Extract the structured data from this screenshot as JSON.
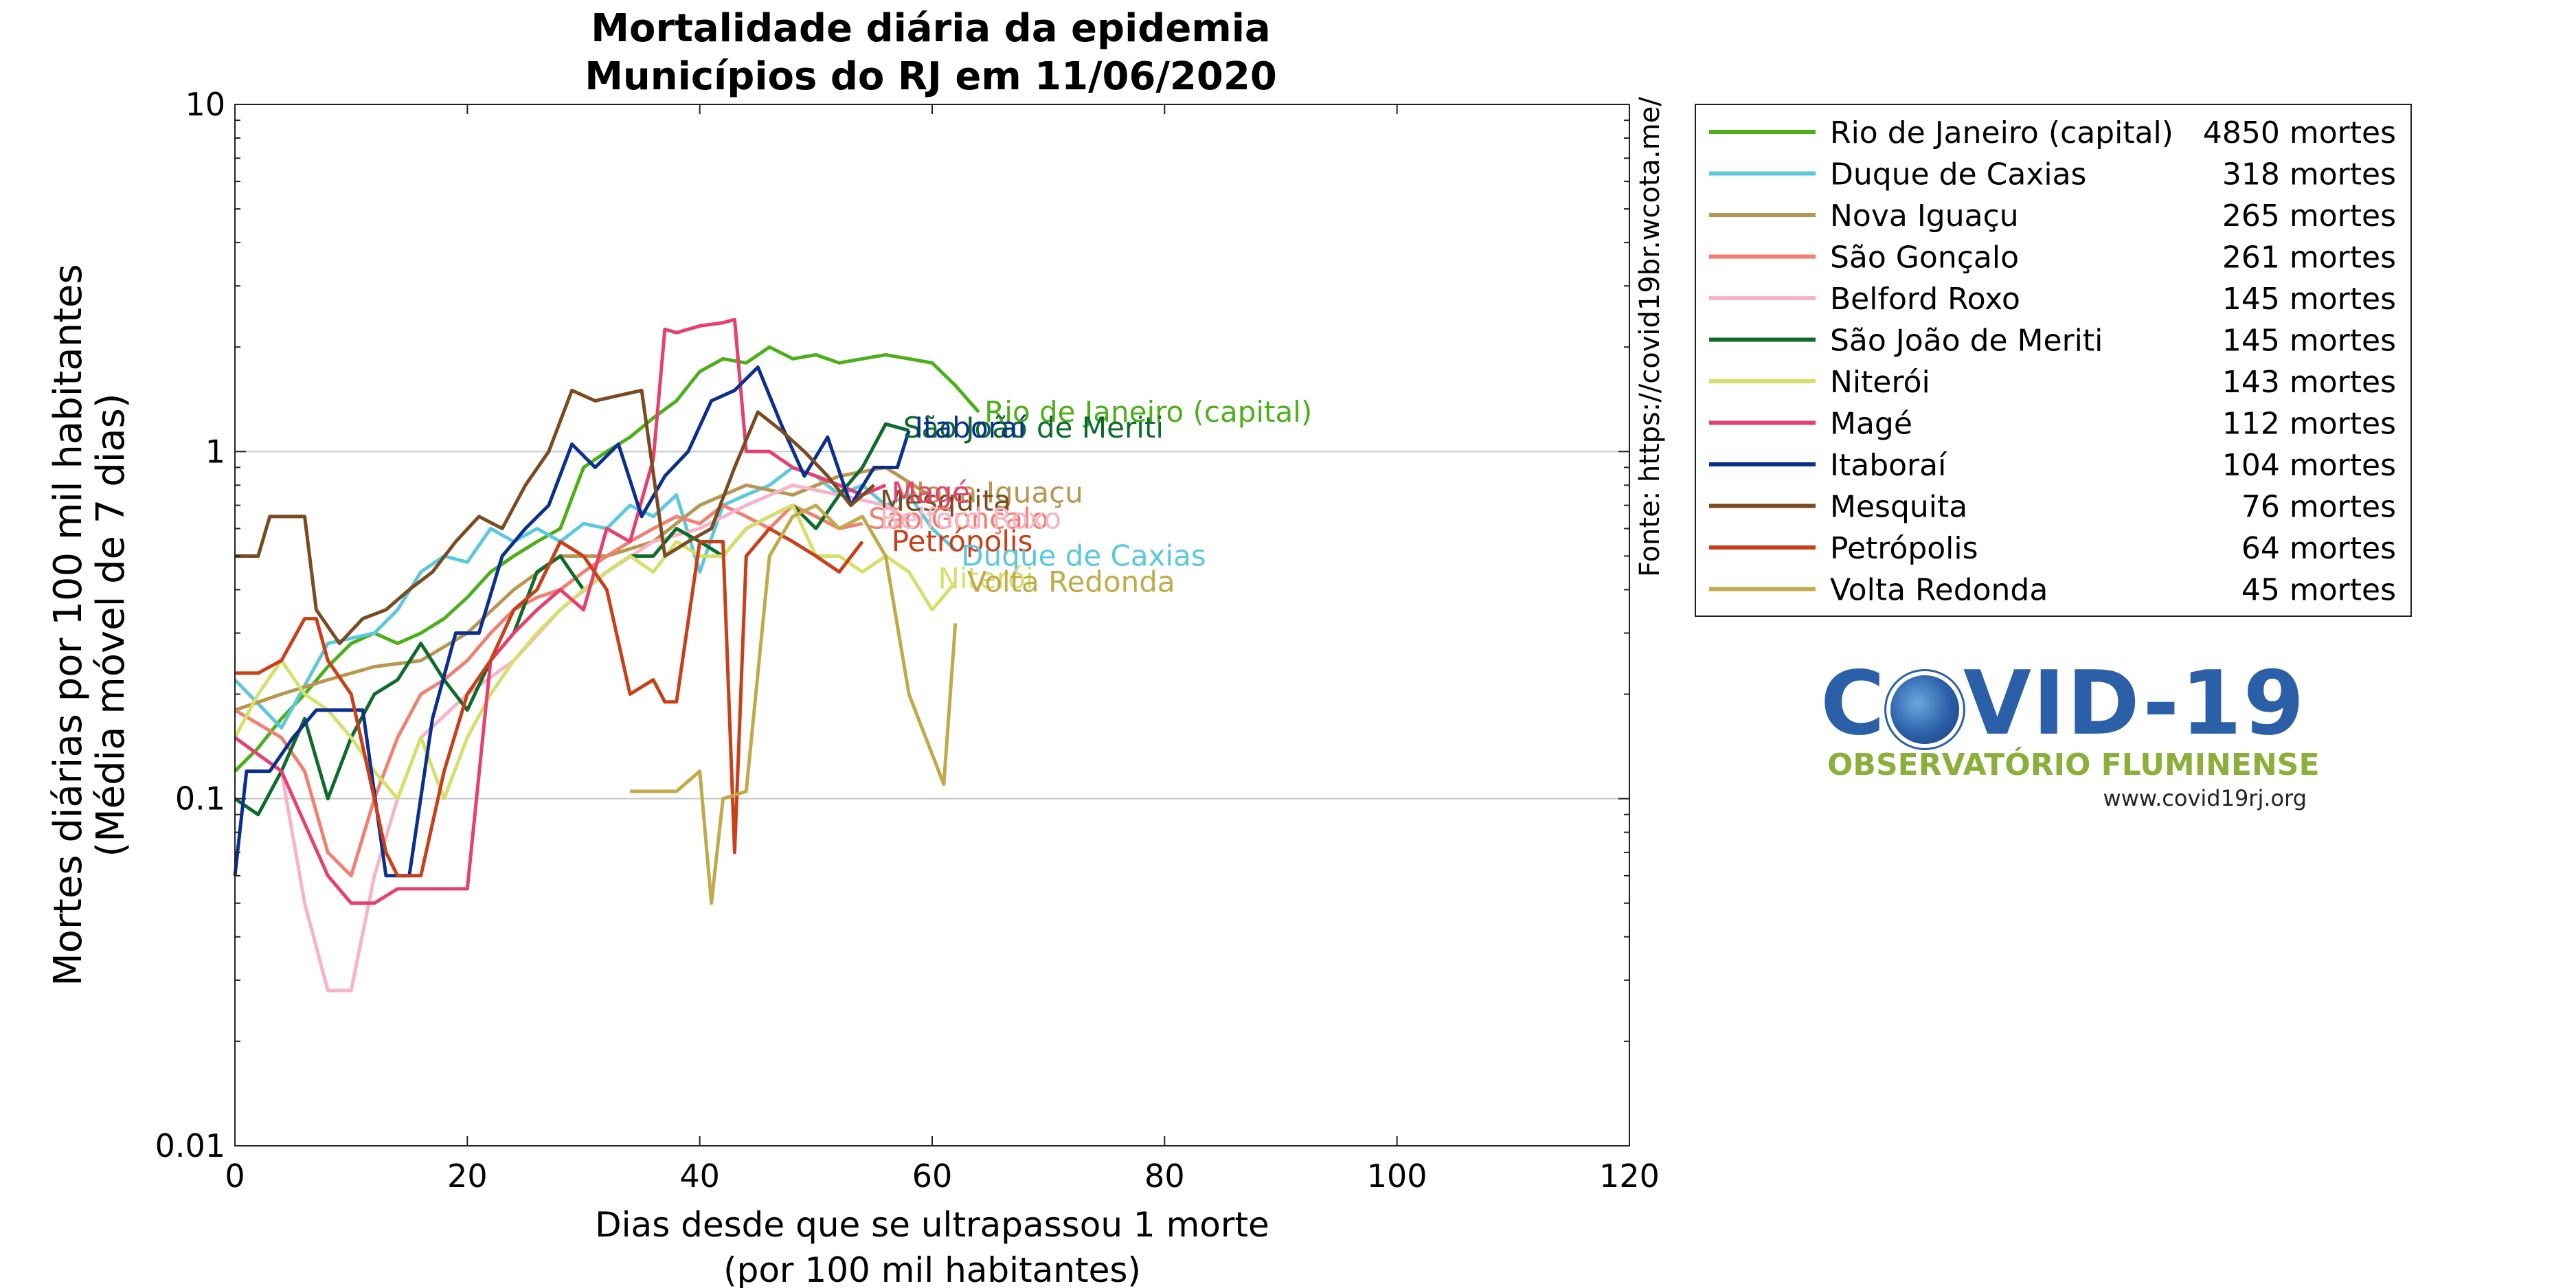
{
  "chart_data": {
    "type": "line",
    "title": "Mortalidade diária da epidemia",
    "subtitle": "Municípios do RJ em 11/06/2020",
    "xlabel": "Dias desde que se ultrapassou 1 morte",
    "xlabel2": "(por 100 mil habitantes)",
    "ylabel": "Mortes diárias por 100 mil habitantes",
    "ylabel2": "(Média móvel de 7 dias)",
    "xlim": [
      0,
      120
    ],
    "ylim": [
      0.01,
      10
    ],
    "yscale": "log",
    "xticks": [
      0,
      20,
      40,
      60,
      80,
      100,
      120
    ],
    "yticks": [
      0.01,
      0.1,
      1,
      10
    ],
    "ytick_labels": [
      "0.01",
      "0.1",
      "1",
      "10"
    ],
    "grid": "horizontal at decades",
    "legend_placement": "outside-right",
    "source_note": "Fonte: https://covid19br.wcota.me/",
    "series": [
      {
        "name": "Rio de Janeiro (capital)",
        "deaths": "4850 mortes",
        "color": "#4caf1a",
        "x": [
          0,
          2,
          4,
          6,
          8,
          10,
          12,
          14,
          16,
          18,
          20,
          22,
          24,
          26,
          28,
          30,
          32,
          34,
          36,
          38,
          40,
          42,
          44,
          46,
          48,
          50,
          52,
          54,
          56,
          58,
          60,
          62,
          64
        ],
        "y": [
          0.12,
          0.14,
          0.17,
          0.2,
          0.24,
          0.28,
          0.3,
          0.28,
          0.3,
          0.33,
          0.38,
          0.45,
          0.5,
          0.55,
          0.6,
          0.9,
          1.0,
          1.1,
          1.25,
          1.4,
          1.7,
          1.85,
          1.8,
          2.0,
          1.85,
          1.9,
          1.8,
          1.85,
          1.9,
          1.85,
          1.8,
          1.55,
          1.3
        ]
      },
      {
        "name": "Duque de Caxias",
        "deaths": "318 mortes",
        "color": "#5bc8dc",
        "x": [
          0,
          4,
          8,
          12,
          14,
          16,
          18,
          20,
          22,
          24,
          26,
          28,
          30,
          32,
          34,
          36,
          38,
          40,
          42,
          44,
          46,
          48,
          50,
          52,
          54,
          56,
          58,
          60,
          62
        ],
        "y": [
          0.22,
          0.16,
          0.28,
          0.3,
          0.35,
          0.45,
          0.5,
          0.48,
          0.6,
          0.55,
          0.6,
          0.55,
          0.62,
          0.6,
          0.7,
          0.65,
          0.75,
          0.45,
          0.7,
          0.75,
          0.8,
          0.9,
          0.85,
          0.75,
          0.8,
          0.7,
          0.75,
          0.6,
          0.52
        ]
      },
      {
        "name": "Nova Iguaçu",
        "deaths": "265 mortes",
        "color": "#b89650",
        "x": [
          0,
          4,
          8,
          12,
          16,
          20,
          24,
          28,
          32,
          36,
          40,
          44,
          48,
          52,
          56,
          60
        ],
        "y": [
          0.18,
          0.2,
          0.22,
          0.24,
          0.25,
          0.3,
          0.4,
          0.5,
          0.5,
          0.55,
          0.7,
          0.8,
          0.75,
          0.85,
          0.9,
          0.74
        ]
      },
      {
        "name": "São Gonçalo",
        "deaths": "261 mortes",
        "color": "#f08070",
        "x": [
          0,
          4,
          6,
          8,
          10,
          12,
          14,
          16,
          18,
          20,
          22,
          24,
          26,
          28,
          30,
          32,
          34,
          36,
          38,
          40,
          42,
          44,
          46,
          48,
          50,
          52,
          54
        ],
        "y": [
          0.18,
          0.15,
          0.12,
          0.07,
          0.06,
          0.1,
          0.15,
          0.2,
          0.22,
          0.25,
          0.3,
          0.35,
          0.38,
          0.4,
          0.45,
          0.5,
          0.55,
          0.6,
          0.65,
          0.62,
          0.7,
          0.65,
          0.6,
          0.7,
          0.65,
          0.6,
          0.62
        ]
      },
      {
        "name": "Belford Roxo",
        "deaths": "145 mortes",
        "color": "#f7b4c8",
        "x": [
          0,
          4,
          6,
          8,
          10,
          12,
          14,
          16,
          20,
          24,
          28,
          32,
          36,
          40,
          44,
          48,
          52,
          56,
          58
        ],
        "y": [
          0.15,
          0.12,
          0.05,
          0.028,
          0.028,
          0.06,
          0.1,
          0.15,
          0.2,
          0.25,
          0.35,
          0.45,
          0.55,
          0.6,
          0.7,
          0.8,
          0.75,
          0.7,
          0.63
        ]
      },
      {
        "name": "São João de Meriti",
        "deaths": "145 mortes",
        "color": "#0e6b2c",
        "x": [
          0,
          2,
          4,
          6,
          8,
          10,
          12,
          14,
          16,
          18,
          20,
          22,
          24,
          26,
          28,
          30,
          32,
          34,
          36,
          38,
          40,
          42,
          44,
          46,
          48,
          50,
          52,
          54,
          56,
          58
        ],
        "y": [
          0.1,
          0.09,
          0.12,
          0.17,
          0.1,
          0.15,
          0.2,
          0.22,
          0.28,
          0.22,
          0.18,
          0.25,
          0.3,
          0.45,
          0.5,
          0.4,
          0.45,
          0.5,
          0.5,
          0.6,
          0.55,
          0.5,
          0.6,
          0.65,
          0.7,
          0.6,
          0.75,
          0.9,
          1.2,
          1.15
        ]
      },
      {
        "name": "Niterói",
        "deaths": "143 mortes",
        "color": "#d4e06a",
        "x": [
          0,
          2,
          4,
          6,
          8,
          10,
          12,
          14,
          16,
          18,
          20,
          22,
          24,
          26,
          28,
          30,
          32,
          34,
          36,
          38,
          40,
          42,
          44,
          46,
          48,
          50,
          52,
          54,
          56,
          58,
          60,
          62
        ],
        "y": [
          0.15,
          0.2,
          0.25,
          0.2,
          0.18,
          0.15,
          0.12,
          0.1,
          0.15,
          0.1,
          0.15,
          0.2,
          0.25,
          0.3,
          0.35,
          0.4,
          0.45,
          0.5,
          0.45,
          0.55,
          0.5,
          0.5,
          0.6,
          0.65,
          0.7,
          0.5,
          0.5,
          0.45,
          0.5,
          0.45,
          0.35,
          0.42
        ]
      },
      {
        "name": "Magé",
        "deaths": "112 mortes",
        "color": "#e8406e",
        "x": [
          0,
          4,
          8,
          10,
          12,
          14,
          16,
          18,
          20,
          22,
          24,
          26,
          28,
          30,
          32,
          34,
          36,
          37,
          38,
          40,
          42,
          43,
          44,
          46,
          48,
          50,
          52,
          54,
          56
        ],
        "y": [
          0.15,
          0.12,
          0.06,
          0.05,
          0.05,
          0.055,
          0.055,
          0.055,
          0.055,
          0.25,
          0.3,
          0.35,
          0.4,
          0.35,
          0.6,
          0.55,
          0.95,
          2.25,
          2.2,
          2.3,
          2.35,
          2.4,
          1.0,
          1.0,
          0.9,
          0.85,
          0.8,
          0.75,
          0.8
        ]
      },
      {
        "name": "Itaboraí",
        "deaths": "104 mortes",
        "color": "#0b2f8c",
        "x": [
          0,
          1,
          3,
          5,
          7,
          9,
          11,
          13,
          15,
          17,
          19,
          21,
          23,
          25,
          27,
          29,
          31,
          33,
          35,
          37,
          39,
          41,
          43,
          45,
          47,
          49,
          51,
          53,
          55,
          57,
          58
        ],
        "y": [
          0.06,
          0.12,
          0.12,
          0.15,
          0.18,
          0.18,
          0.18,
          0.06,
          0.06,
          0.17,
          0.3,
          0.3,
          0.5,
          0.6,
          0.7,
          1.05,
          0.9,
          1.05,
          0.65,
          0.85,
          1.0,
          1.4,
          1.5,
          1.75,
          1.2,
          0.85,
          1.1,
          0.7,
          0.9,
          0.9,
          1.15
        ]
      },
      {
        "name": "Mesquita",
        "deaths": "76 mortes",
        "color": "#7a4a20",
        "x": [
          0,
          2,
          3,
          6,
          7,
          9,
          11,
          13,
          15,
          17,
          19,
          21,
          23,
          25,
          27,
          29,
          31,
          33,
          35,
          37,
          39,
          41,
          43,
          45,
          47,
          49,
          51,
          53,
          55
        ],
        "y": [
          0.5,
          0.5,
          0.65,
          0.65,
          0.35,
          0.28,
          0.33,
          0.35,
          0.4,
          0.45,
          0.55,
          0.65,
          0.6,
          0.8,
          1.0,
          1.5,
          1.4,
          1.45,
          1.5,
          0.5,
          0.55,
          0.6,
          0.9,
          1.3,
          1.15,
          1.0,
          0.85,
          0.7,
          0.8
        ]
      },
      {
        "name": "Petrópolis",
        "deaths": "64 mortes",
        "color": "#c8401a",
        "x": [
          0,
          2,
          4,
          6,
          7,
          8,
          10,
          12,
          13,
          14,
          16,
          18,
          20,
          22,
          24,
          26,
          28,
          30,
          32,
          34,
          36,
          37,
          38,
          40,
          42,
          43,
          44,
          46,
          48,
          50,
          52,
          54
        ],
        "y": [
          0.23,
          0.23,
          0.25,
          0.33,
          0.33,
          0.25,
          0.2,
          0.1,
          0.07,
          0.06,
          0.06,
          0.12,
          0.2,
          0.25,
          0.35,
          0.4,
          0.55,
          0.5,
          0.4,
          0.2,
          0.22,
          0.19,
          0.19,
          0.55,
          0.55,
          0.07,
          0.5,
          0.6,
          0.55,
          0.5,
          0.45,
          0.55
        ]
      },
      {
        "name": "Volta Redonda",
        "deaths": "45 mortes",
        "color": "#c0aa4a",
        "x": [
          34,
          36,
          38,
          40,
          41,
          42,
          44,
          46,
          48,
          50,
          52,
          54,
          56,
          58,
          61,
          62
        ],
        "y": [
          0.105,
          0.105,
          0.105,
          0.12,
          0.05,
          0.1,
          0.105,
          0.5,
          0.65,
          0.7,
          0.6,
          0.65,
          0.5,
          0.2,
          0.11,
          0.32
        ]
      }
    ],
    "annotations": [
      {
        "text": "Rio de Janeiro (capital)",
        "x": 64.5,
        "y": 1.3,
        "color": "#4caf1a"
      },
      {
        "text": "São João de Meriti",
        "x": 57.5,
        "y": 1.17,
        "color": "#0e6b2c"
      },
      {
        "text": "Itaboraí",
        "x": 58.5,
        "y": 1.17,
        "color": "#0b2f8c"
      },
      {
        "text": "Nova Iguaçu",
        "x": 57.5,
        "y": 0.76,
        "color": "#b89650"
      },
      {
        "text": "Mesquita",
        "x": 55.5,
        "y": 0.72,
        "color": "#7a4a20"
      },
      {
        "text": "Magé",
        "x": 56.5,
        "y": 0.76,
        "color": "#e8406e"
      },
      {
        "text": "São Gonçalo",
        "x": 54.5,
        "y": 0.64,
        "color": "#f08070"
      },
      {
        "text": "Belford Roxo",
        "x": 55.5,
        "y": 0.64,
        "color": "#f7b4c8"
      },
      {
        "text": "Petrópolis",
        "x": 56.5,
        "y": 0.55,
        "color": "#c8401a"
      },
      {
        "text": "Duque de Caxias",
        "x": 62.5,
        "y": 0.5,
        "color": "#5bc8dc"
      },
      {
        "text": "Niterói",
        "x": 60.5,
        "y": 0.43,
        "color": "#d4e06a"
      },
      {
        "text": "Volta Redonda",
        "x": 63,
        "y": 0.42,
        "color": "#c0aa4a"
      }
    ]
  },
  "logo": {
    "covid_pre": "C",
    "covid_post": "VID-19",
    "subtitle": "OBSERVATÓRIO FLUMINENSE",
    "url": "www.covid19rj.org"
  }
}
